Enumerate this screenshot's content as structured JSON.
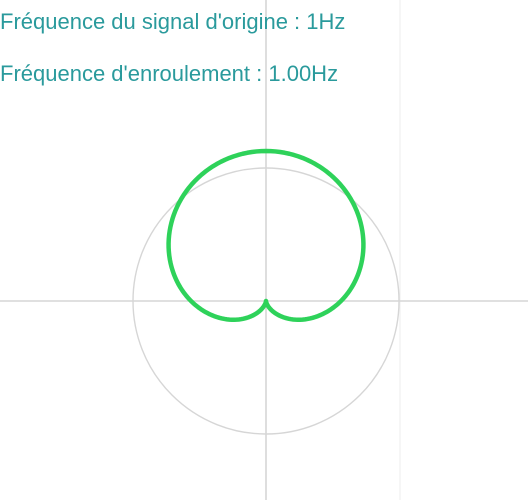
{
  "labels": {
    "origin_frequency": "Fréquence du signal d'origine : 1Hz",
    "winding_frequency": "Fréquence d'enroulement : 1.00Hz"
  },
  "colors": {
    "text": "#2a9a9c",
    "axis": "#d6d6d6",
    "grid": "#ececec",
    "reference_circle": "#d6d6d6",
    "curve": "#2ed25a"
  },
  "diagram": {
    "origin_signal_hz": 1,
    "winding_hz": 1.0
  }
}
